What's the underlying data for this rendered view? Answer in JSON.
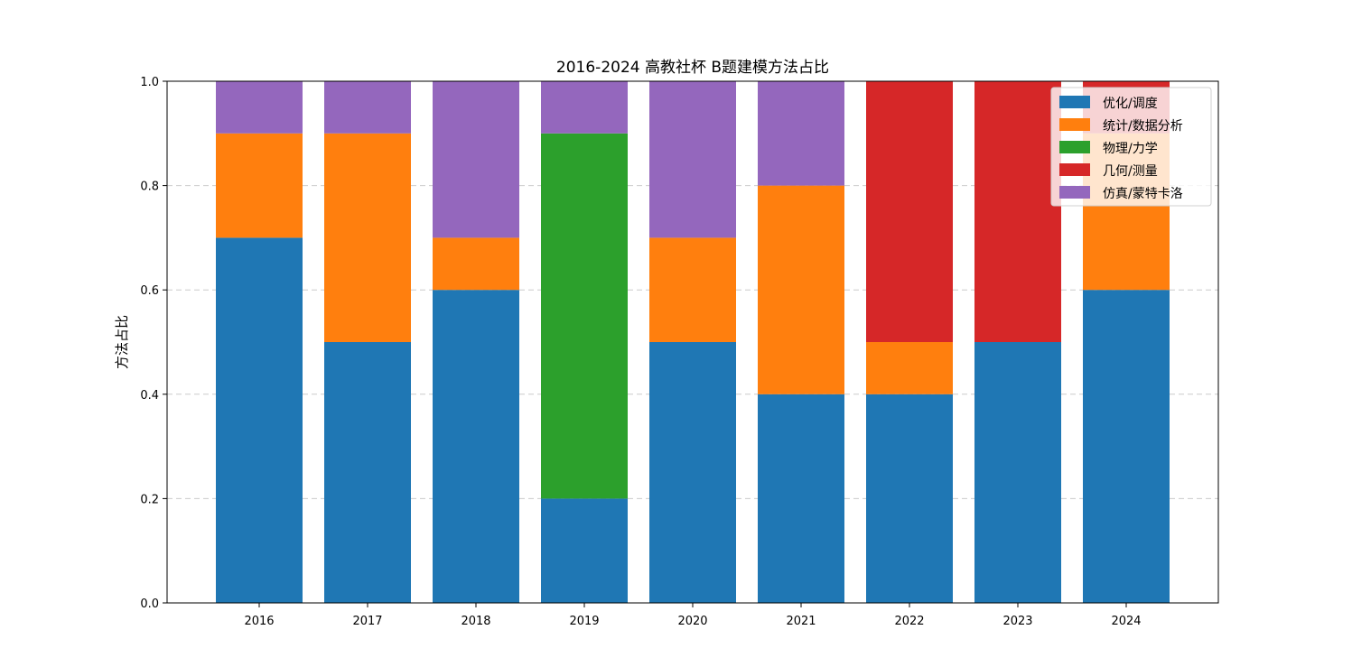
{
  "chart_data": {
    "type": "bar",
    "stacked": true,
    "title": "2016-2024 高教社杯 B题建模方法占比",
    "xlabel": "",
    "ylabel": "方法占比",
    "ylim": [
      0,
      1
    ],
    "yticks": [
      "0.0",
      "0.2",
      "0.4",
      "0.6",
      "0.8",
      "1.0"
    ],
    "grid": "y-dashed",
    "legend_position": "top-right",
    "categories": [
      "2016",
      "2017",
      "2018",
      "2019",
      "2020",
      "2021",
      "2022",
      "2023",
      "2024"
    ],
    "series": [
      {
        "name": "优化/调度",
        "color": "#1f77b4",
        "values": [
          0.7,
          0.5,
          0.6,
          0.2,
          0.5,
          0.4,
          0.4,
          0.5,
          0.6
        ]
      },
      {
        "name": "统计/数据分析",
        "color": "#ff7f0e",
        "values": [
          0.2,
          0.4,
          0.1,
          0.0,
          0.2,
          0.4,
          0.1,
          0.0,
          0.3
        ]
      },
      {
        "name": "物理/力学",
        "color": "#2ca02c",
        "values": [
          0.0,
          0.0,
          0.0,
          0.7,
          0.0,
          0.0,
          0.0,
          0.0,
          0.0
        ]
      },
      {
        "name": "几何/测量",
        "color": "#d62728",
        "values": [
          0.0,
          0.0,
          0.0,
          0.0,
          0.0,
          0.0,
          0.5,
          0.5,
          0.1
        ]
      },
      {
        "name": "仿真/蒙特卡洛",
        "color": "#9467bd",
        "values": [
          0.1,
          0.1,
          0.3,
          0.1,
          0.3,
          0.2,
          0.0,
          0.0,
          0.0
        ]
      }
    ]
  }
}
